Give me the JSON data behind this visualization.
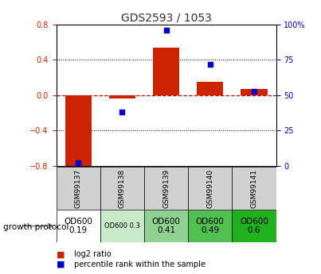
{
  "title": "GDS2593 / 1053",
  "samples": [
    "GSM99137",
    "GSM99138",
    "GSM99139",
    "GSM99140",
    "GSM99141"
  ],
  "log2_ratio": [
    -0.82,
    -0.04,
    0.54,
    0.15,
    0.07
  ],
  "percentile_rank": [
    2,
    38,
    96,
    72,
    53
  ],
  "ylim_left": [
    -0.8,
    0.8
  ],
  "ylim_right": [
    0,
    100
  ],
  "bar_color": "#cc2200",
  "dot_color": "#0000cc",
  "zero_line_color": "#cc0000",
  "left_yticks": [
    -0.8,
    -0.4,
    0.0,
    0.4,
    0.8
  ],
  "right_ytick_vals": [
    0,
    25,
    50,
    75,
    100
  ],
  "right_ytick_labels": [
    "0",
    "25",
    "50",
    "75",
    "100%"
  ],
  "protocol_labels": [
    "OD600\n0.19",
    "OD600 0.3",
    "OD600\n0.41",
    "OD600\n0.49",
    "OD600\n0.6"
  ],
  "protocol_bg": [
    "#ffffff",
    "#c8eac8",
    "#90d090",
    "#50c050",
    "#20b020"
  ],
  "protocol_fontsize": [
    7.5,
    6.0,
    7.5,
    7.5,
    7.5
  ],
  "legend_log2": "log2 ratio",
  "legend_pct": "percentile rank within the sample",
  "bar_width": 0.6,
  "sample_bg": "#d0d0d0",
  "title_fontsize": 10,
  "tick_fontsize": 7,
  "sample_fontsize": 6.5,
  "growth_label": "growth protocol",
  "growth_fontsize": 7.5
}
